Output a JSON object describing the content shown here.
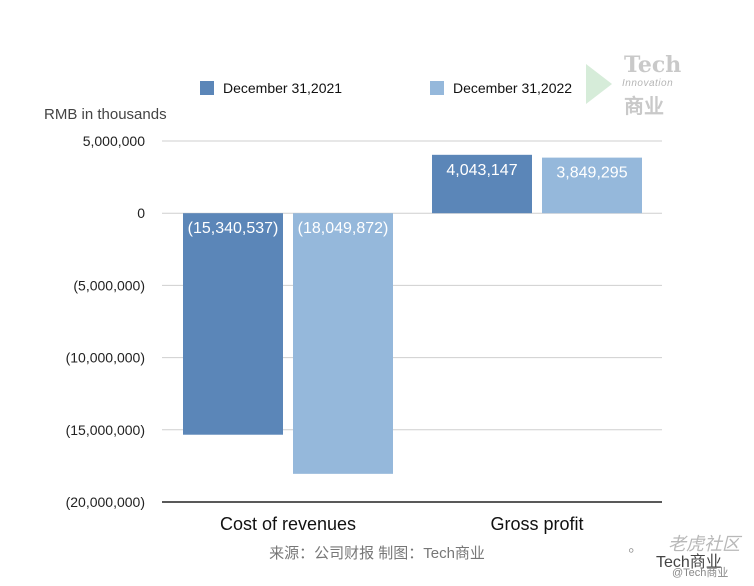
{
  "chart_data": {
    "type": "bar",
    "categories": [
      "Cost of revenues",
      "Gross profit"
    ],
    "series": [
      {
        "name": "December 31,2021",
        "values": [
          -15340537,
          4043147
        ],
        "labels": [
          "(15,340,537)",
          "4,043,147"
        ],
        "color": "#5b86b8"
      },
      {
        "name": "December 31,2022",
        "values": [
          -18049872,
          3849295
        ],
        "labels": [
          "(18,049,872)",
          "3,849,295"
        ],
        "color": "#95b8db"
      }
    ],
    "ylabel": "RMB in thousands",
    "ylim": [
      -20000000,
      5000000
    ],
    "yticks": [
      5000000,
      0,
      -5000000,
      -10000000,
      -15000000,
      -20000000
    ],
    "ytick_labels": [
      "5,000,000",
      "0",
      "(5,000,000)",
      "(10,000,000)",
      "(15,000,000)",
      "(20,000,000)"
    ],
    "grid": true,
    "legend_position": "top"
  },
  "source_note": "来源：公司财报 制图：Tech商业",
  "watermark": {
    "brand": "Tech",
    "tagline": "Innovation",
    "brand_cn": "商业"
  },
  "credit": {
    "site": "老虎社区",
    "account": "Tech商业",
    "handle": "@Tech商业"
  }
}
